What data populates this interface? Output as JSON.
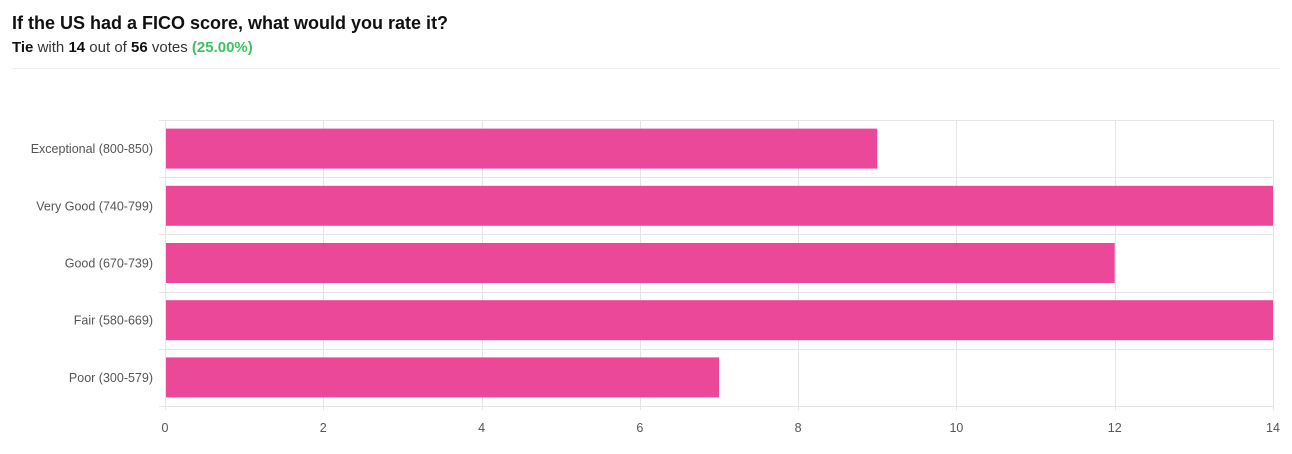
{
  "poll": {
    "question": "If the US had a FICO score, what would you rate it?",
    "result_word": "Tie",
    "with_text": "with",
    "votes_top": "14",
    "out_of_text": "out of",
    "votes_total": "56",
    "votes_word": "votes",
    "percent": "(25.00%)"
  },
  "colors": {
    "bar": "#ec4899",
    "grid": "#e5e5e5",
    "percent": "#3bc45f"
  },
  "chart_data": {
    "type": "bar",
    "orientation": "horizontal",
    "categories": [
      "Exceptional (800-850)",
      "Very Good (740-799)",
      "Good (670-739)",
      "Fair (580-669)",
      "Poor (300-579)"
    ],
    "values": [
      9,
      14,
      12,
      14,
      7
    ],
    "xlim": [
      0,
      14
    ],
    "xticks": [
      0,
      2,
      4,
      6,
      8,
      10,
      12,
      14
    ],
    "grid": true,
    "title": "",
    "xlabel": "",
    "ylabel": ""
  }
}
